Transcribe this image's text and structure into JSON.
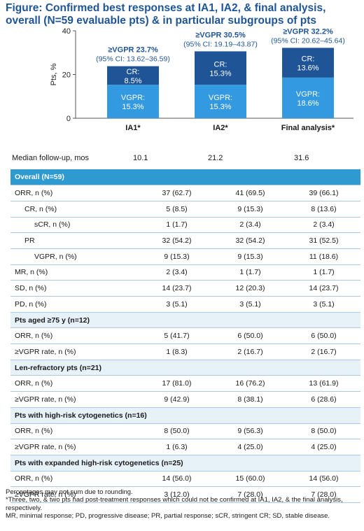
{
  "title": "Figure: Confirmed best responses at IA1, IA2, & final analysis, overall (N=59 evaluable pts) & in particular subgroups of pts",
  "chart_data": {
    "type": "bar",
    "stacked": true,
    "categories": [
      "IA1*",
      "IA2*",
      "Final analysis*"
    ],
    "series": [
      {
        "name": "VGPR",
        "values": [
          15.3,
          15.3,
          18.6
        ],
        "labels": [
          "VGPR:",
          "VGPR:",
          "VGPR:"
        ],
        "color": "#3399e0"
      },
      {
        "name": "CR",
        "values": [
          8.5,
          15.3,
          13.6
        ],
        "labels": [
          "CR:",
          "CR:",
          "CR:"
        ],
        "color": "#1f5597"
      }
    ],
    "annotations": [
      {
        "headline": "≥VGPR 23.7%",
        "ci": "(95% CI: 13.62–36.59)"
      },
      {
        "headline": "≥VGPR 30.5%",
        "ci": "(95% CI: 19.19–43.87)"
      },
      {
        "headline": "≥VGPR 32.2%",
        "ci": "(95% CI: 20.62–45.64)"
      }
    ],
    "ylabel": "Pts, %",
    "ylim": [
      0,
      40
    ],
    "yticks": [
      0,
      20,
      40
    ],
    "grid": false
  },
  "followup": {
    "label": "Median follow-up, mos",
    "values": [
      "10.1",
      "21.2",
      "31.6"
    ]
  },
  "table": {
    "rows": [
      {
        "type": "hdr",
        "label": "Overall (N=59)"
      },
      {
        "type": "row",
        "indent": 1,
        "label": "ORR, n (%)",
        "values": [
          "37 (62.7)",
          "41 (69.5)",
          "39 (66.1)"
        ]
      },
      {
        "type": "row",
        "indent": 2,
        "label": "CR, n (%)",
        "values": [
          "5 (8.5)",
          "9 (15.3)",
          "8 (13.6)"
        ]
      },
      {
        "type": "row",
        "indent": 3,
        "label": "sCR, n (%)",
        "values": [
          "1 (1.7)",
          "2 (3.4)",
          "2 (3.4)"
        ]
      },
      {
        "type": "row",
        "indent": 2,
        "label": "PR",
        "values": [
          "32 (54.2)",
          "32 (54.2)",
          "31 (52.5)"
        ]
      },
      {
        "type": "row",
        "indent": 3,
        "label": "VGPR, n (%)",
        "values": [
          "9 (15.3)",
          "9 (15.3)",
          "11 (18.6)"
        ]
      },
      {
        "type": "row",
        "indent": 1,
        "label": "MR, n (%)",
        "values": [
          "2 (3.4)",
          "1 (1.7)",
          "1 (1.7)"
        ]
      },
      {
        "type": "row",
        "indent": 1,
        "label": "SD, n (%)",
        "values": [
          "14 (23.7)",
          "12 (20.3)",
          "14 (23.7)"
        ]
      },
      {
        "type": "row",
        "indent": 1,
        "label": "PD, n (%)",
        "values": [
          "3 (5.1)",
          "3 (5.1)",
          "3 (5.1)"
        ]
      },
      {
        "type": "sec",
        "label": "Pts aged ≥75 y (n=12)"
      },
      {
        "type": "row",
        "indent": 1,
        "label": "ORR, n (%)",
        "values": [
          "5 (41.7)",
          "6 (50.0)",
          "6 (50.0)"
        ]
      },
      {
        "type": "row",
        "indent": 1,
        "label": "≥VGPR rate, n (%)",
        "values": [
          "1 (8.3)",
          "2 (16.7)",
          "2 (16.7)"
        ]
      },
      {
        "type": "sec",
        "label": "Len-refractory pts (n=21)"
      },
      {
        "type": "row",
        "indent": 1,
        "label": "ORR, n (%)",
        "values": [
          "17 (81.0)",
          "16 (76.2)",
          "13 (61.9)"
        ]
      },
      {
        "type": "row",
        "indent": 1,
        "label": "≥VGPR rate, n (%)",
        "values": [
          "9 (42.9)",
          "8 (38.1)",
          "6 (28.6)"
        ]
      },
      {
        "type": "sec",
        "label": "Pts with high-risk cytogenetics (n=16)"
      },
      {
        "type": "row",
        "indent": 1,
        "label": "ORR, n (%)",
        "values": [
          "8 (50.0)",
          "9 (56.3)",
          "8 (50.0)"
        ]
      },
      {
        "type": "row",
        "indent": 1,
        "label": "≥VGPR rate, n (%)",
        "values": [
          "1 (6.3)",
          "4 (25.0)",
          "4 (25.0)"
        ]
      },
      {
        "type": "sec",
        "label": "Pts with expanded high-risk cytogenetics (n=25)"
      },
      {
        "type": "row",
        "indent": 1,
        "label": "ORR, n (%)",
        "values": [
          "14 (56.0)",
          "15 (60.0)",
          "14 (56.0)"
        ]
      },
      {
        "type": "row",
        "indent": 1,
        "label": "≥VGPR rate, n (%)",
        "values": [
          "3 (12.0)",
          "7 (28.0)",
          "7 (28.0)"
        ]
      }
    ]
  },
  "footnotes": [
    "Percentages may not sum due to rounding.",
    "*Three, two, & two pts had post-treatment responses which could not be confirmed at IA1, IA2, & the final analysis, respectively.",
    "MR, minimal response; PD, progressive disease; PR, partial response; sCR, stringent CR; SD, stable disease."
  ]
}
